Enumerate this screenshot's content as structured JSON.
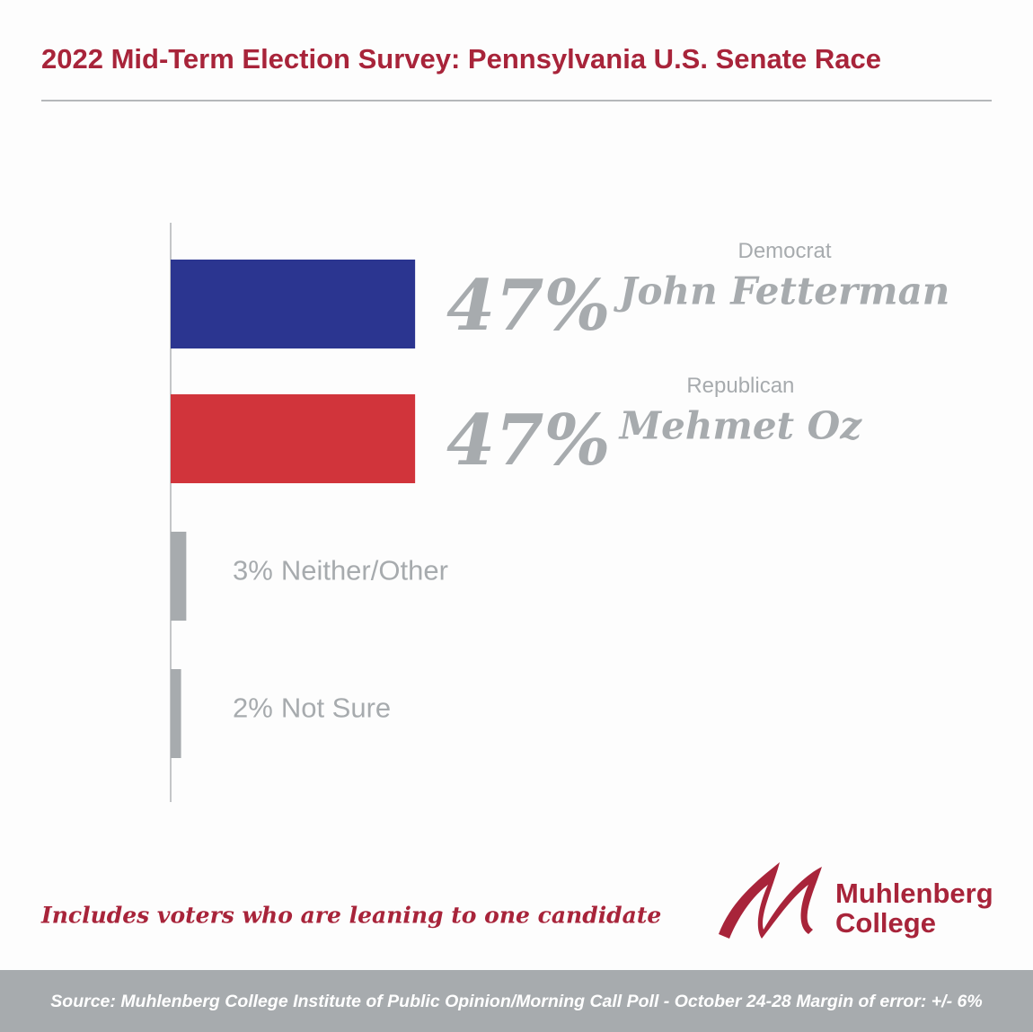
{
  "chart_data": {
    "type": "hbar",
    "title": "2022 Mid-Term Election Survey: Pennsylvania U.S. Senate Race",
    "categories": [
      "John Fetterman",
      "Mehmet Oz",
      "Neither/Other",
      "Not Sure"
    ],
    "parties": [
      "Democrat",
      "Republican",
      null,
      null
    ],
    "values": [
      47,
      47,
      3,
      2
    ],
    "value_labels": [
      "47%",
      "47%",
      "3%",
      "2%"
    ],
    "colors": [
      "#2b3590",
      "#d1343b",
      "#a7abae",
      "#a7abae"
    ],
    "note": "Includes voters who are leaning to one candidate"
  },
  "logo": [
    "Muhlenberg",
    "College"
  ],
  "source": "Source: Muhlenberg College Institute of Public Opinion/Morning Call Poll - October 24-28  Margin of error: +/- 6%"
}
